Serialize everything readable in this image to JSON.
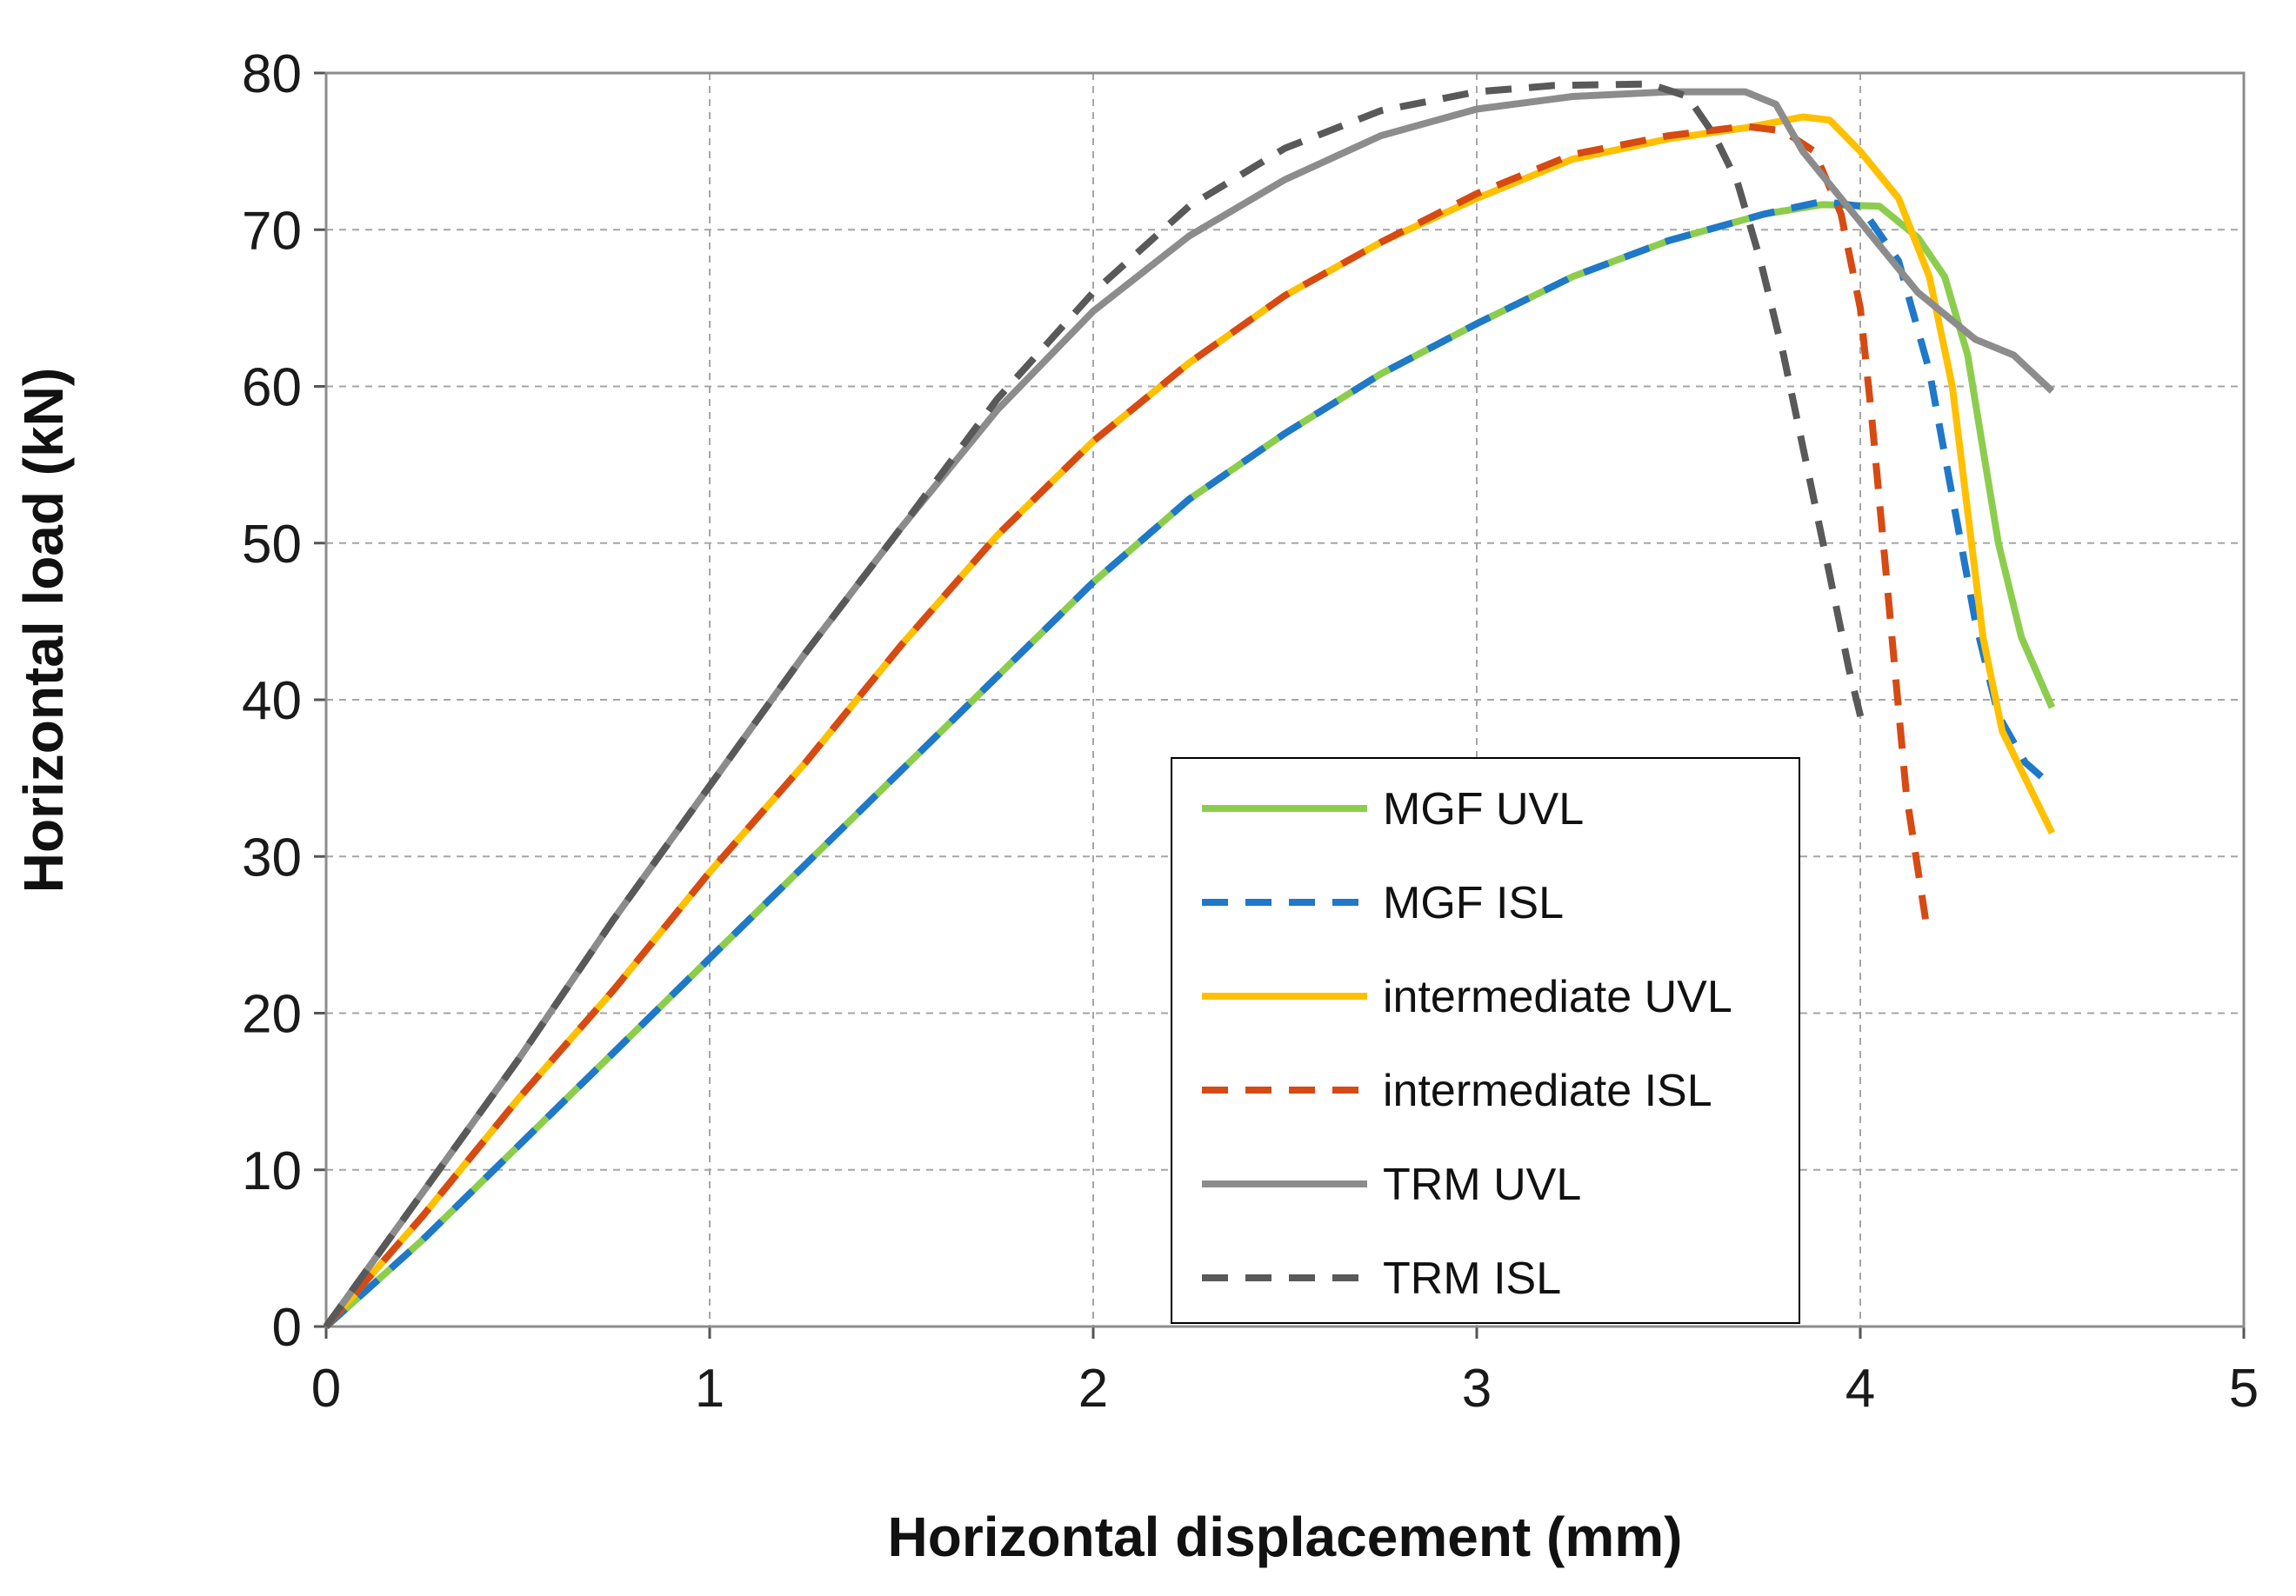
{
  "chart_data": {
    "type": "line",
    "title": "",
    "xlabel": "Horizontal displacement (mm)",
    "ylabel": "Horizontal load (kN)",
    "xlim": [
      0,
      5
    ],
    "ylim": [
      0,
      80
    ],
    "xticks": [
      0,
      1,
      2,
      3,
      4,
      5
    ],
    "yticks": [
      0,
      10,
      20,
      30,
      40,
      50,
      60,
      70,
      80
    ],
    "xtick_labels": [
      "0",
      "1",
      "2",
      "3",
      "4",
      "5"
    ],
    "ytick_labels": [
      "0",
      "10",
      "20",
      "30",
      "40",
      "50",
      "60",
      "70",
      "80"
    ],
    "grid": true,
    "legend_position": "lower-center-right",
    "series": [
      {
        "name": "MGF UVL",
        "color": "#8ccd4e",
        "dash": "solid",
        "points": [
          [
            0,
            0
          ],
          [
            0.25,
            5.5
          ],
          [
            0.5,
            11.5
          ],
          [
            0.75,
            17.5
          ],
          [
            1,
            23.5
          ],
          [
            1.25,
            29.5
          ],
          [
            1.5,
            35.5
          ],
          [
            1.75,
            41.5
          ],
          [
            2,
            47.5
          ],
          [
            2.25,
            52.8
          ],
          [
            2.5,
            57
          ],
          [
            2.75,
            60.8
          ],
          [
            3,
            64
          ],
          [
            3.25,
            67
          ],
          [
            3.5,
            69.3
          ],
          [
            3.75,
            71
          ],
          [
            3.9,
            71.6
          ],
          [
            4.05,
            71.5
          ],
          [
            4.15,
            69.5
          ],
          [
            4.22,
            67
          ],
          [
            4.28,
            62
          ],
          [
            4.32,
            56
          ],
          [
            4.36,
            50
          ],
          [
            4.42,
            44
          ],
          [
            4.5,
            39.5
          ]
        ]
      },
      {
        "name": "MGF ISL",
        "color": "#1f78c8",
        "dash": "dashed",
        "points": [
          [
            0,
            0
          ],
          [
            0.25,
            5.5
          ],
          [
            0.5,
            11.5
          ],
          [
            0.75,
            17.5
          ],
          [
            1,
            23.5
          ],
          [
            1.25,
            29.5
          ],
          [
            1.5,
            35.5
          ],
          [
            1.75,
            41.5
          ],
          [
            2,
            47.5
          ],
          [
            2.25,
            52.8
          ],
          [
            2.5,
            57
          ],
          [
            2.75,
            60.8
          ],
          [
            3,
            64
          ],
          [
            3.25,
            67
          ],
          [
            3.5,
            69.3
          ],
          [
            3.75,
            71
          ],
          [
            3.9,
            71.8
          ],
          [
            4,
            71.5
          ],
          [
            4.1,
            68
          ],
          [
            4.18,
            61
          ],
          [
            4.24,
            53
          ],
          [
            4.3,
            45
          ],
          [
            4.36,
            39
          ],
          [
            4.43,
            36
          ],
          [
            4.5,
            34.5
          ]
        ]
      },
      {
        "name": "intermediate UVL",
        "color": "#ffc000",
        "dash": "solid",
        "points": [
          [
            0,
            0
          ],
          [
            0.25,
            7
          ],
          [
            0.5,
            14.5
          ],
          [
            0.75,
            21.5
          ],
          [
            1,
            29
          ],
          [
            1.25,
            36
          ],
          [
            1.5,
            43.5
          ],
          [
            1.75,
            50.5
          ],
          [
            2,
            56.5
          ],
          [
            2.25,
            61.5
          ],
          [
            2.5,
            65.8
          ],
          [
            2.75,
            69.2
          ],
          [
            3,
            72
          ],
          [
            3.25,
            74.5
          ],
          [
            3.5,
            75.8
          ],
          [
            3.7,
            76.5
          ],
          [
            3.85,
            77.2
          ],
          [
            3.92,
            77
          ],
          [
            4,
            75
          ],
          [
            4.1,
            72
          ],
          [
            4.18,
            67
          ],
          [
            4.24,
            60
          ],
          [
            4.28,
            52
          ],
          [
            4.32,
            44
          ],
          [
            4.37,
            38
          ],
          [
            4.45,
            34
          ],
          [
            4.5,
            31.5
          ]
        ]
      },
      {
        "name": "intermediate ISL",
        "color": "#d64a13",
        "dash": "dashed",
        "points": [
          [
            0,
            0
          ],
          [
            0.25,
            7
          ],
          [
            0.5,
            14.5
          ],
          [
            0.75,
            21.5
          ],
          [
            1,
            29
          ],
          [
            1.25,
            36
          ],
          [
            1.5,
            43.5
          ],
          [
            1.75,
            50.5
          ],
          [
            2,
            56.5
          ],
          [
            2.25,
            61.5
          ],
          [
            2.5,
            65.8
          ],
          [
            2.75,
            69.2
          ],
          [
            3,
            72.3
          ],
          [
            3.25,
            74.8
          ],
          [
            3.5,
            76
          ],
          [
            3.7,
            76.6
          ],
          [
            3.8,
            76.3
          ],
          [
            3.88,
            75
          ],
          [
            3.95,
            71
          ],
          [
            4,
            65
          ],
          [
            4.03,
            58
          ],
          [
            4.06,
            50
          ],
          [
            4.09,
            42
          ],
          [
            4.12,
            34
          ],
          [
            4.17,
            26
          ]
        ]
      },
      {
        "name": "TRM UVL",
        "color": "#8c8c8c",
        "dash": "solid",
        "points": [
          [
            0,
            0
          ],
          [
            0.25,
            8.5
          ],
          [
            0.5,
            17
          ],
          [
            0.75,
            26
          ],
          [
            1,
            34.5
          ],
          [
            1.25,
            43
          ],
          [
            1.5,
            51
          ],
          [
            1.75,
            58.5
          ],
          [
            2,
            64.8
          ],
          [
            2.25,
            69.6
          ],
          [
            2.5,
            73.2
          ],
          [
            2.75,
            76
          ],
          [
            3,
            77.7
          ],
          [
            3.25,
            78.5
          ],
          [
            3.5,
            78.8
          ],
          [
            3.7,
            78.8
          ],
          [
            3.78,
            78
          ],
          [
            3.85,
            75
          ],
          [
            3.95,
            72
          ],
          [
            4.05,
            69
          ],
          [
            4.15,
            66
          ],
          [
            4.3,
            63
          ],
          [
            4.4,
            62
          ],
          [
            4.5,
            59.7
          ]
        ]
      },
      {
        "name": "TRM ISL",
        "color": "#595959",
        "dash": "dashed",
        "points": [
          [
            0,
            0
          ],
          [
            0.25,
            8.5
          ],
          [
            0.5,
            17
          ],
          [
            0.75,
            26
          ],
          [
            1,
            34.5
          ],
          [
            1.25,
            43
          ],
          [
            1.5,
            51
          ],
          [
            1.75,
            59.2
          ],
          [
            2,
            66
          ],
          [
            2.25,
            71.5
          ],
          [
            2.5,
            75.2
          ],
          [
            2.75,
            77.6
          ],
          [
            3,
            78.8
          ],
          [
            3.2,
            79.2
          ],
          [
            3.45,
            79.3
          ],
          [
            3.55,
            78.5
          ],
          [
            3.62,
            76
          ],
          [
            3.68,
            73
          ],
          [
            3.74,
            68
          ],
          [
            3.8,
            62
          ],
          [
            3.86,
            55
          ],
          [
            3.92,
            48
          ],
          [
            3.97,
            42
          ],
          [
            4.01,
            38
          ]
        ]
      }
    ]
  }
}
